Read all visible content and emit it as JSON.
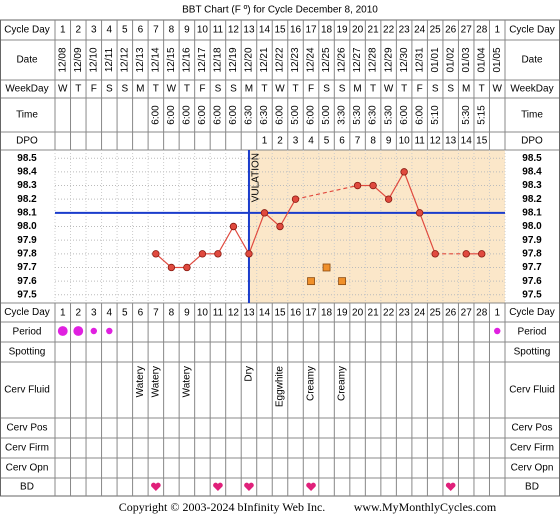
{
  "title": "BBT Chart (F º) for Cycle December 8, 2010",
  "rows": [
    "Cycle Day",
    "Date",
    "WeekDay",
    "Time",
    "DPO",
    "Cycle Day",
    "Period",
    "Spotting",
    "Cerv Fluid",
    "Cerv Pos",
    "Cerv Firm",
    "Cerv Opn",
    "BD"
  ],
  "chart_data": {
    "type": "line",
    "categories": [
      1,
      2,
      3,
      4,
      5,
      6,
      7,
      8,
      9,
      10,
      11,
      12,
      13,
      14,
      15,
      16,
      17,
      18,
      19,
      20,
      21,
      22,
      23,
      24,
      25,
      26,
      27,
      28,
      1
    ],
    "dates": [
      "12/08",
      "12/09",
      "12/10",
      "12/11",
      "12/12",
      "12/13",
      "12/14",
      "12/15",
      "12/16",
      "12/17",
      "12/18",
      "12/19",
      "12/20",
      "12/21",
      "12/22",
      "12/23",
      "12/24",
      "12/25",
      "12/26",
      "12/27",
      "12/28",
      "12/29",
      "12/30",
      "12/31",
      "01/01",
      "01/02",
      "01/03",
      "01/04",
      "01/05"
    ],
    "weekdays": [
      "W",
      "T",
      "F",
      "S",
      "S",
      "M",
      "T",
      "W",
      "T",
      "F",
      "S",
      "S",
      "M",
      "T",
      "W",
      "T",
      "F",
      "S",
      "S",
      "M",
      "T",
      "W",
      "T",
      "F",
      "S",
      "S",
      "M",
      "T",
      "W"
    ],
    "times": [
      null,
      null,
      null,
      null,
      null,
      null,
      "6:00",
      "6:00",
      "6:00",
      "6:00",
      "6:00",
      "6:00",
      "6:30",
      "6:30",
      "6:00",
      "5:00",
      "6:00",
      "5:00",
      "3:30",
      "5:30",
      "6:30",
      "5:30",
      "6:00",
      "6:00",
      "5:10",
      null,
      "5:30",
      "5:15",
      null
    ],
    "dpo": [
      null,
      null,
      null,
      null,
      null,
      null,
      null,
      null,
      null,
      null,
      null,
      null,
      null,
      1,
      2,
      3,
      4,
      5,
      6,
      7,
      8,
      9,
      10,
      11,
      12,
      13,
      14,
      15,
      null
    ],
    "series": [
      {
        "color": "#e04a3f",
        "values": [
          null,
          null,
          null,
          null,
          null,
          null,
          97.8,
          97.7,
          97.7,
          97.8,
          97.8,
          98.0,
          97.8,
          98.1,
          98.0,
          98.2,
          null,
          null,
          null,
          98.3,
          98.3,
          98.2,
          98.4,
          98.1,
          97.8,
          null,
          97.8,
          97.8,
          null
        ]
      },
      {
        "color": "#f0902a",
        "marker": "square",
        "values": [
          null,
          null,
          null,
          null,
          null,
          null,
          null,
          null,
          null,
          null,
          null,
          null,
          null,
          null,
          null,
          null,
          97.6,
          97.7,
          97.6,
          null,
          null,
          null,
          null,
          null,
          null,
          null,
          null,
          null,
          null
        ]
      }
    ],
    "ylim": [
      97.44,
      98.56
    ],
    "yticks": [
      98.5,
      98.4,
      98.3,
      98.2,
      98.1,
      {
        "value": 98.0,
        "label": "98.0"
      },
      97.9,
      97.8,
      97.7,
      97.6,
      97.5
    ],
    "grid": true,
    "coverline": 98.1,
    "coverline_color": "#1a3ccc",
    "ovulation_day": 13,
    "ovulation_label": "VULATION",
    "period": [
      2,
      2,
      1,
      1,
      null,
      null,
      null,
      null,
      null,
      null,
      null,
      null,
      null,
      null,
      null,
      null,
      null,
      null,
      null,
      null,
      null,
      null,
      null,
      null,
      null,
      null,
      null,
      null,
      1
    ],
    "period_color": "#e020e0",
    "cerv_fluid": [
      null,
      null,
      null,
      null,
      null,
      "Watery",
      "Watery",
      null,
      "Watery",
      null,
      null,
      null,
      "Dry",
      null,
      "Eggwhite",
      null,
      "Creamy",
      null,
      "Creamy",
      null,
      null,
      null,
      null,
      null,
      null,
      null,
      null,
      null,
      null
    ],
    "bd": [
      7,
      11,
      13,
      17,
      26
    ],
    "bd_color": "#e0207a"
  },
  "footer": {
    "copyright": "Copyright © 2003-2024 bInfinity Web Inc.",
    "site": "www.MyMonthlyCycles.com"
  }
}
